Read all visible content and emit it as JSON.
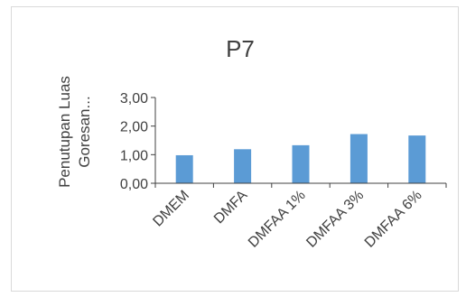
{
  "chart_data": {
    "type": "bar",
    "title": "P7",
    "ylabel_lines": [
      "Penutupan Luas",
      "Goresan..."
    ],
    "xlabel": "",
    "categories": [
      "DMEM",
      "DMFA",
      "DMFAA 1%",
      "DMFAA 3%",
      "DMFAA 6%"
    ],
    "values": [
      0.98,
      1.19,
      1.33,
      1.72,
      1.67
    ],
    "ylim": [
      0,
      3
    ],
    "yticks": [
      "0,00",
      "1,00",
      "2,00",
      "3,00"
    ],
    "grid": false,
    "legend": "none",
    "bar_color": "#5b9bd5",
    "axis_color": "#404040"
  }
}
